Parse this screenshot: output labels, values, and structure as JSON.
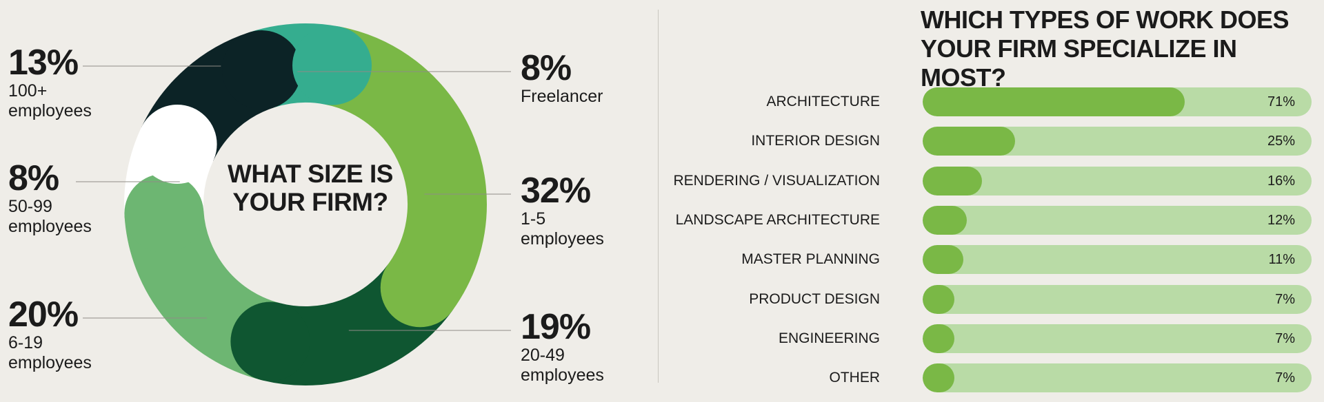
{
  "chart_data": [
    {
      "type": "pie",
      "title": "WHAT SIZE IS YOUR FIRM?",
      "slices": [
        {
          "pct_label": "8%",
          "label": "Freelancer",
          "value": 8,
          "color": "#35ad8f"
        },
        {
          "pct_label": "32%",
          "label": "1-5\nemployees",
          "value": 32,
          "color": "#7ab846"
        },
        {
          "pct_label": "19%",
          "label": "20-49\nemployees",
          "value": 19,
          "color": "#0f5631"
        },
        {
          "pct_label": "20%",
          "label": "6-19\nemployees",
          "value": 20,
          "color": "#6db672"
        },
        {
          "pct_label": "8%",
          "label": "50-99\nemployees",
          "value": 8,
          "color": "#ffffff"
        },
        {
          "pct_label": "13%",
          "label": "100+\nemployees",
          "value": 13,
          "color": "#0c2326"
        }
      ]
    },
    {
      "type": "bar",
      "title": "WHICH TYPES OF WORK DOES\nYOUR FIRM SPECIALIZE IN MOST?",
      "categories": [
        "ARCHITECTURE",
        "INTERIOR DESIGN",
        "RENDERING / VISUALIZATION",
        "LANDSCAPE ARCHITECTURE",
        "MASTER PLANNING",
        "PRODUCT DESIGN",
        "ENGINEERING",
        "OTHER"
      ],
      "values": [
        71,
        25,
        16,
        12,
        11,
        7,
        7,
        7
      ],
      "value_labels": [
        "71%",
        "25%",
        "16%",
        "12%",
        "11%",
        "7%",
        "7%",
        "7%"
      ],
      "ylim": [
        0,
        100
      ],
      "colors": {
        "fill": "#7ab846",
        "track": "#b9dba6"
      }
    }
  ]
}
